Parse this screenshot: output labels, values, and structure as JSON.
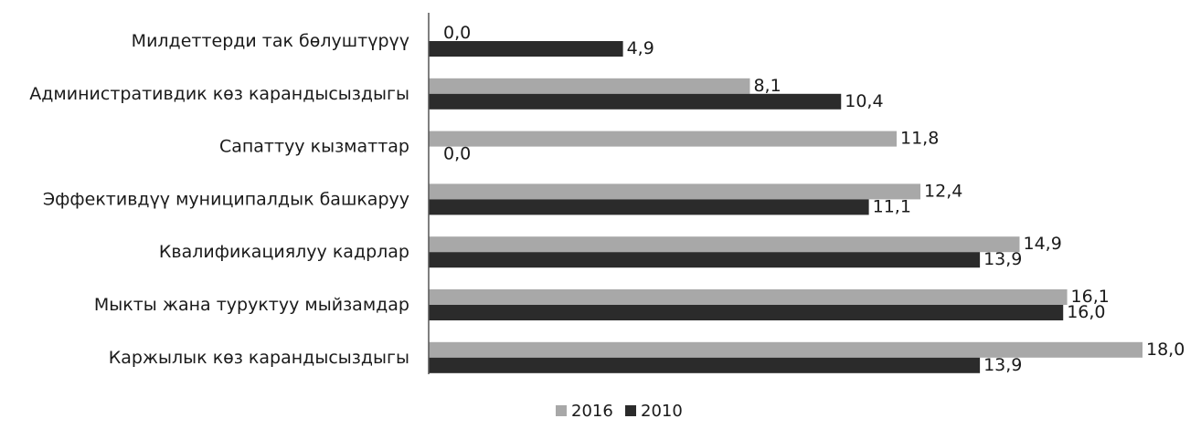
{
  "chart_data": {
    "type": "bar",
    "orientation": "horizontal",
    "title": "",
    "xlabel": "",
    "ylabel": "",
    "categories": [
      "Милдеттерди так бөлуштүрүү",
      "Административдик көз карандысыздыгы",
      "Сапаттуу кызматтар",
      "Эффективдүү муниципалдык башкаруу",
      "Квалификациялуу кадрлар",
      "Мыкты жана туруктуу мыйзамдар",
      "Каржылык көз карандысыздыгы"
    ],
    "series": [
      {
        "name": "2016",
        "color": "#a8a8a8",
        "values": [
          0.0,
          8.1,
          11.8,
          12.4,
          14.9,
          16.1,
          18.0
        ],
        "labels": [
          "0,0",
          "8,1",
          "11,8",
          "12,4",
          "14,9",
          "16,1",
          "18,0"
        ]
      },
      {
        "name": "2010",
        "color": "#2b2b2b",
        "values": [
          4.9,
          10.4,
          0.0,
          11.1,
          13.9,
          16.0,
          13.9
        ],
        "labels": [
          "4,9",
          "10,4",
          "0,0",
          "11,1",
          "13,9",
          "16,0",
          "13,9"
        ]
      }
    ],
    "xlim": [
      0,
      18
    ],
    "grid": false,
    "legend_position": "bottom"
  }
}
